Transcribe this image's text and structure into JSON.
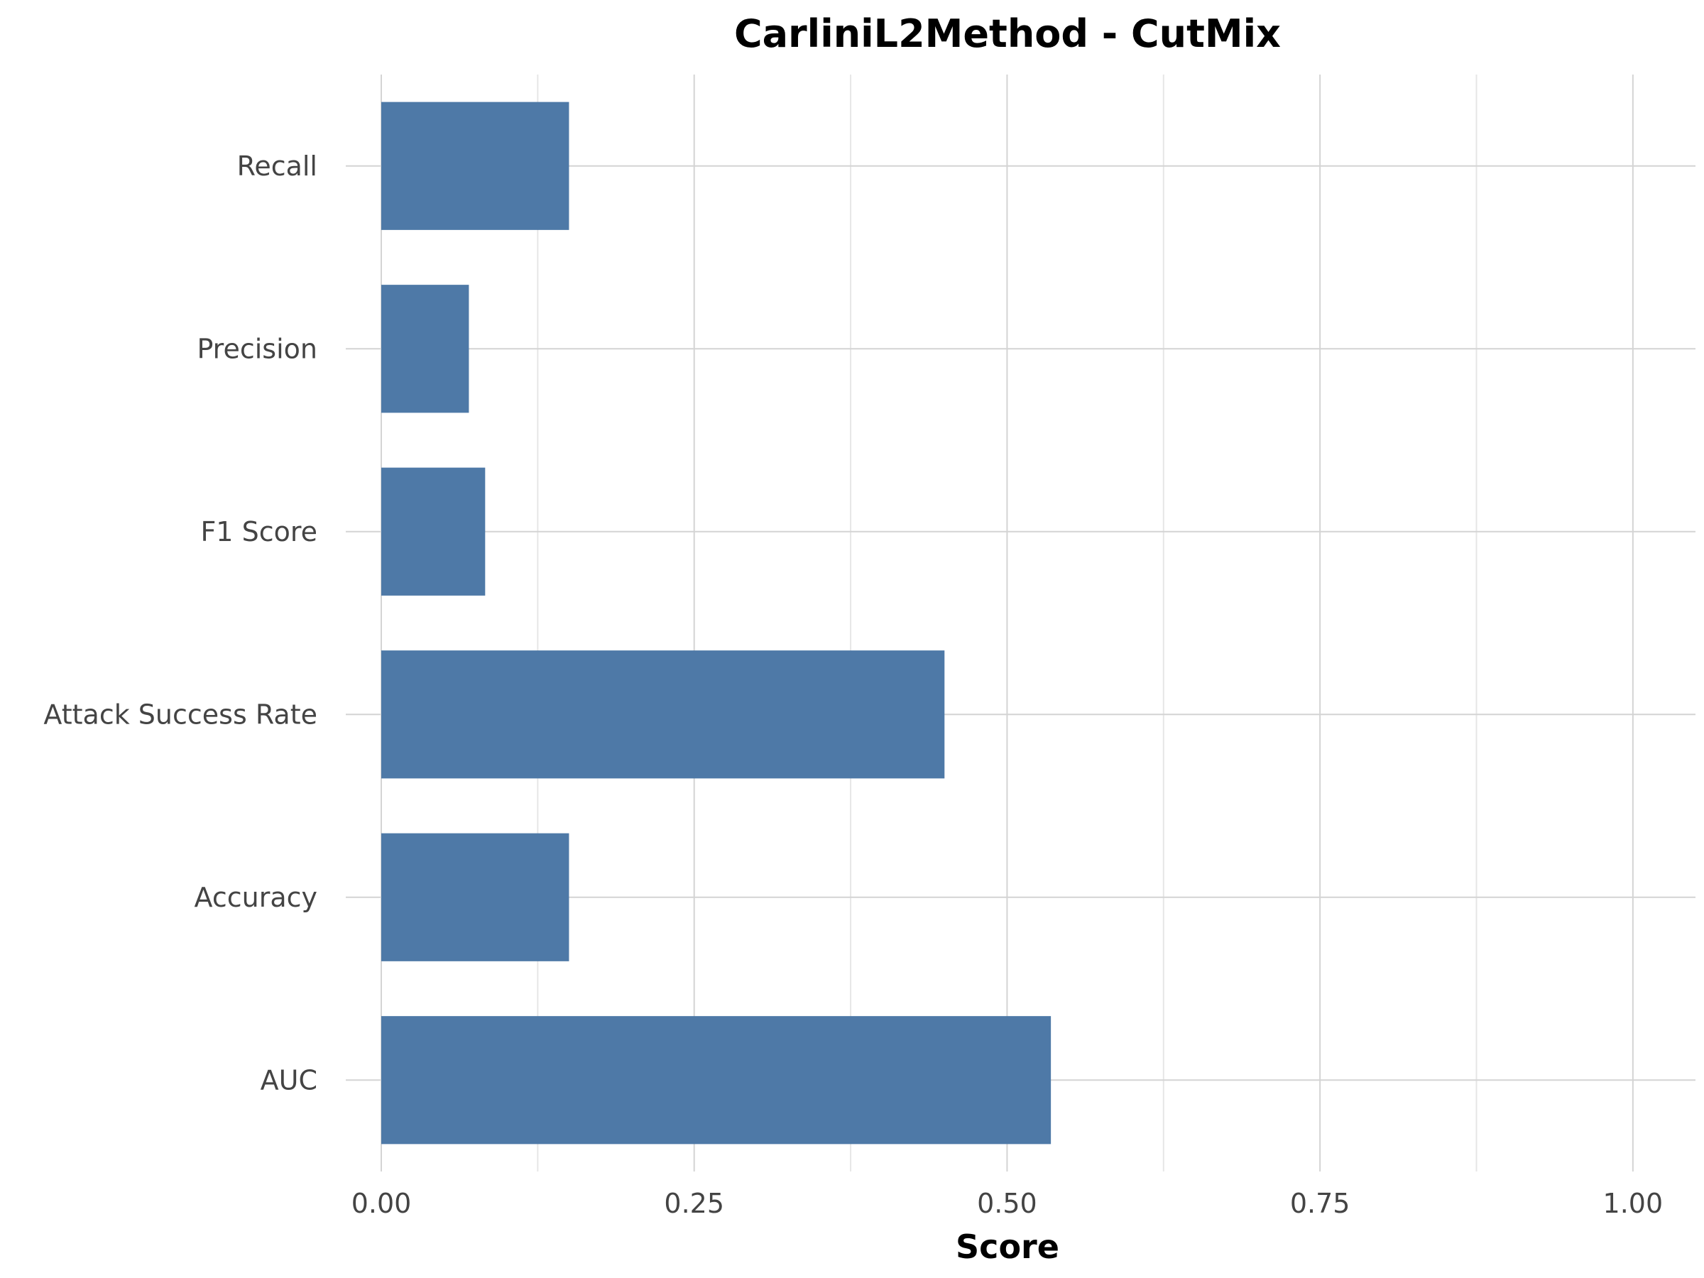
{
  "chart_data": {
    "type": "bar",
    "orientation": "horizontal",
    "title": "CarliniL2Method - CutMix",
    "xlabel": "Score",
    "ylabel": "",
    "categories": [
      "AUC",
      "Accuracy",
      "Attack Success Rate",
      "F1 Score",
      "Precision",
      "Recall"
    ],
    "values": [
      0.535,
      0.15,
      0.45,
      0.083,
      0.07,
      0.15
    ],
    "xlim": [
      0,
      1.05
    ],
    "xticks": [
      0,
      0.25,
      0.5,
      0.75,
      1.0
    ],
    "xtick_labels": [
      "0.00",
      "0.25",
      "0.50",
      "0.75",
      "1.00"
    ],
    "grid": true,
    "bar_color": "#4e79a7"
  }
}
